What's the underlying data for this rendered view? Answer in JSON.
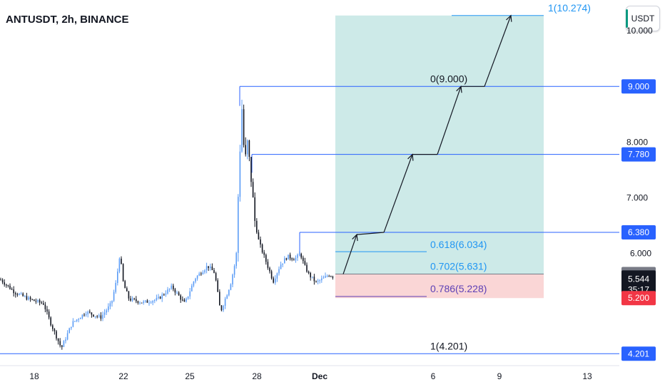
{
  "header": {
    "title": "ANTUSDT, 2h, BINANCE"
  },
  "currency_button": {
    "label": "USDT"
  },
  "chart_data": {
    "type": "candlestick",
    "symbol": "ANTUSDT",
    "interval": "2h",
    "exchange": "BINANCE",
    "ylim": [
      4.0,
      10.45
    ],
    "y_ticks": [
      "10.000",
      "8.000",
      "7.000"
    ],
    "x_ticks": [
      "18",
      "22",
      "25",
      "28",
      "Dec",
      "6",
      "9",
      "13"
    ],
    "price_path": [
      [
        0,
        5.53
      ],
      [
        20,
        5.3
      ],
      [
        40,
        5.18
      ],
      [
        60,
        5.1
      ],
      [
        70,
        4.75
      ],
      [
        85,
        4.3
      ],
      [
        100,
        4.75
      ],
      [
        120,
        4.95
      ],
      [
        140,
        4.85
      ],
      [
        155,
        5.1
      ],
      [
        162,
        5.5
      ],
      [
        167,
        6.0
      ],
      [
        172,
        5.45
      ],
      [
        180,
        5.18
      ],
      [
        200,
        5.12
      ],
      [
        220,
        5.18
      ],
      [
        240,
        5.4
      ],
      [
        258,
        5.1
      ],
      [
        272,
        5.55
      ],
      [
        290,
        5.78
      ],
      [
        300,
        5.65
      ],
      [
        308,
        4.95
      ],
      [
        322,
        5.45
      ],
      [
        330,
        5.92
      ],
      [
        334,
        7.5
      ],
      [
        338,
        8.6
      ],
      [
        342,
        7.6
      ],
      [
        346,
        8.0
      ],
      [
        352,
        7.2
      ],
      [
        356,
        6.6
      ],
      [
        362,
        6.2
      ],
      [
        372,
        5.85
      ],
      [
        382,
        5.5
      ],
      [
        392,
        5.8
      ],
      [
        402,
        5.95
      ],
      [
        412,
        5.9
      ],
      [
        420,
        6.0
      ],
      [
        425,
        5.8
      ],
      [
        432,
        5.62
      ],
      [
        442,
        5.48
      ],
      [
        452,
        5.55
      ],
      [
        460,
        5.62
      ],
      [
        468,
        5.57
      ]
    ],
    "levels": {
      "high_line": "9.000",
      "mid_line": "7.780",
      "local_high_line": "6.380",
      "bottom_line": "4.201"
    },
    "fib_labels": [
      "1(10.274)",
      "0(9.000)",
      "0.618(6.034)",
      "0.702(5.631)",
      "0.786(5.228)",
      "1(4.201)"
    ],
    "position": {
      "entry": 5.631,
      "stop": 5.2,
      "target": 10.274
    },
    "projection_path": [
      [
        5.631
      ],
      [
        6.34
      ],
      [
        6.38
      ],
      [
        7.78
      ],
      [
        7.78
      ],
      [
        9.0
      ],
      [
        9.0
      ],
      [
        10.274
      ]
    ],
    "price_labels": {
      "last_price": "5.544",
      "countdown": "35:17",
      "entry": "5.631",
      "stop": "5.200",
      "partial": "6.000"
    },
    "colors": {
      "up": "#5b9cf6",
      "down": "#131722",
      "line": "#2962ff",
      "fib_blue": "#2196f3",
      "fib_purple": "#5d40b5",
      "target_zone": "#b2dfdb",
      "stop_zone": "#f8c4c4",
      "stop_label": "#f23645"
    }
  }
}
